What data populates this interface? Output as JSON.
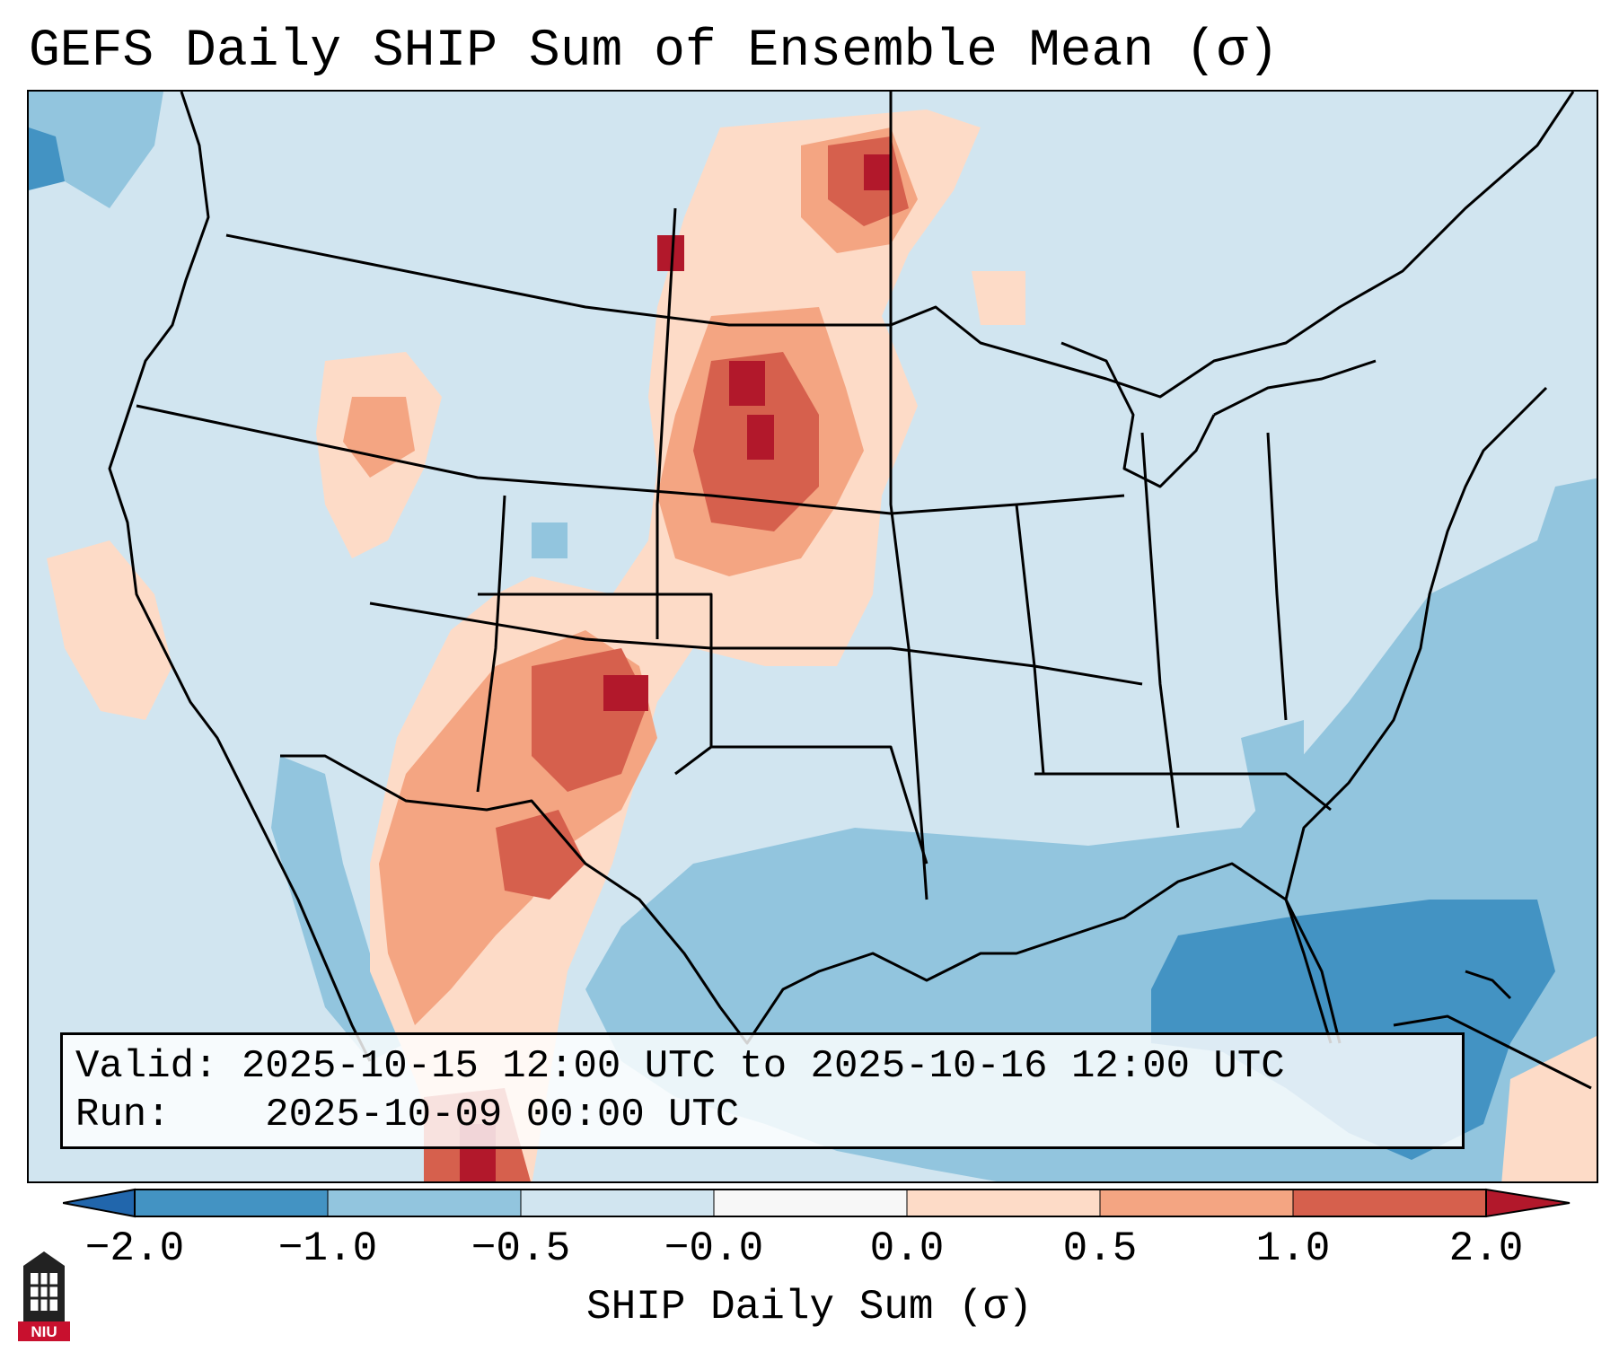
{
  "title": "GEFS Daily SHIP Sum of Ensemble Mean (σ)",
  "info_box": {
    "valid_label": "Valid:",
    "valid_value": "2025-10-15 12:00 UTC to 2025-10-16 12:00 UTC",
    "run_label": "Run:",
    "run_value": "2025-10-09 00:00 UTC"
  },
  "colorbar": {
    "title": "SHIP Daily Sum (σ)",
    "tick_labels": [
      "−2.0",
      "−1.0",
      "−0.5",
      "−0.0",
      "0.0",
      "0.5",
      "1.0",
      "2.0"
    ],
    "colors": [
      "#4393c3",
      "#92c5de",
      "#d1e5f0",
      "#f7f7f7",
      "#fddbc7",
      "#f4a582",
      "#d6604d",
      "#b2182b"
    ],
    "extend_low_color": "#2166ac",
    "extend_high_color": "#b2182b"
  },
  "logo": {
    "text": "NIU",
    "icon": "university-tower-icon"
  },
  "colors": {
    "background_field": "#d1e5f0",
    "ocean_negative": "#92c5de",
    "strong_negative": "#4393c3",
    "positive_light": "#fddbc7",
    "positive_mid": "#f4a582",
    "positive_strong": "#d6604d",
    "positive_max": "#b2182b",
    "logo_red": "#c8102e"
  }
}
